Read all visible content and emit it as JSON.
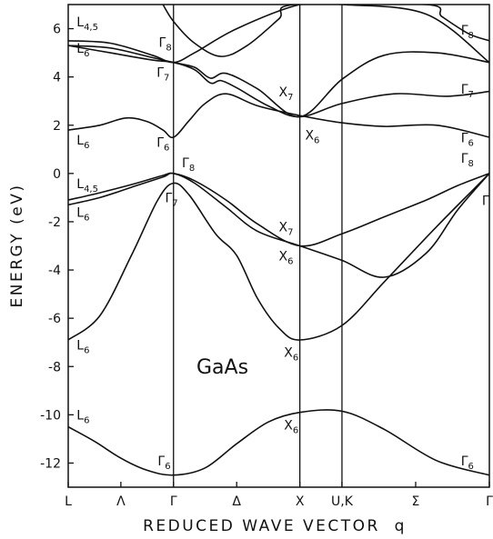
{
  "chart_data": {
    "type": "line",
    "title": "",
    "annotation": "GaAs",
    "xlabel": "REDUCED WAVE VECTOR  q",
    "ylabel": "ENERGY (eV)",
    "ylim": [
      -13,
      7
    ],
    "yticks": [
      6,
      4,
      2,
      0,
      -2,
      -4,
      -6,
      -8,
      -10,
      -12
    ],
    "x_points": [
      {
        "label": "L",
        "pos": 0.0
      },
      {
        "label": "Λ",
        "pos": 0.5
      },
      {
        "label": "Γ",
        "pos": 1.0
      },
      {
        "label": "Δ",
        "pos": 1.6
      },
      {
        "label": "X",
        "pos": 2.2
      },
      {
        "label": "U,K",
        "pos": 2.6
      },
      {
        "label": "Σ",
        "pos": 3.3
      },
      {
        "label": "Γ",
        "pos": 4.0
      }
    ],
    "vertical_lines": [
      1.0,
      2.2,
      2.6
    ],
    "series": [
      {
        "values": [
          [
            0,
            -10.5
          ],
          [
            0.25,
            -11.1
          ],
          [
            0.5,
            -11.8
          ],
          [
            0.75,
            -12.3
          ],
          [
            1.0,
            -12.5
          ],
          [
            1.3,
            -12.2
          ],
          [
            1.6,
            -11.2
          ],
          [
            1.9,
            -10.3
          ],
          [
            2.2,
            -9.9
          ],
          [
            2.6,
            -9.85
          ],
          [
            3.0,
            -10.6
          ],
          [
            3.5,
            -11.9
          ],
          [
            4.0,
            -12.5
          ]
        ]
      },
      {
        "values": [
          [
            0,
            -6.9
          ],
          [
            0.3,
            -5.9
          ],
          [
            0.6,
            -3.4
          ],
          [
            0.85,
            -1.1
          ],
          [
            1.0,
            -0.4
          ],
          [
            1.15,
            -0.9
          ],
          [
            1.4,
            -2.5
          ],
          [
            1.6,
            -3.4
          ],
          [
            1.8,
            -5.2
          ],
          [
            2.0,
            -6.4
          ],
          [
            2.2,
            -6.9
          ],
          [
            2.6,
            -6.3
          ],
          [
            3.0,
            -4.5
          ],
          [
            3.5,
            -2.2
          ],
          [
            4.0,
            0.0
          ]
        ]
      },
      {
        "values": [
          [
            0,
            -1.3
          ],
          [
            0.3,
            -1.0
          ],
          [
            0.65,
            -0.5
          ],
          [
            0.9,
            -0.15
          ],
          [
            1.0,
            0.0
          ],
          [
            1.2,
            -0.4
          ],
          [
            1.5,
            -1.4
          ],
          [
            1.8,
            -2.4
          ],
          [
            2.2,
            -3.0
          ],
          [
            2.6,
            -3.6
          ],
          [
            3.0,
            -4.3
          ],
          [
            3.4,
            -3.3
          ],
          [
            3.7,
            -1.5
          ],
          [
            4.0,
            0.0
          ]
        ]
      },
      {
        "values": [
          [
            0,
            -1.1
          ],
          [
            0.3,
            -0.8
          ],
          [
            0.65,
            -0.4
          ],
          [
            0.9,
            -0.08
          ],
          [
            1.0,
            0.0
          ],
          [
            1.2,
            -0.3
          ],
          [
            1.5,
            -1.1
          ],
          [
            1.8,
            -2.1
          ],
          [
            2.2,
            -3.0
          ],
          [
            2.6,
            -2.5
          ],
          [
            3.0,
            -1.8
          ],
          [
            3.4,
            -1.1
          ],
          [
            3.7,
            -0.5
          ],
          [
            4.0,
            0.0
          ]
        ]
      },
      {
        "values": [
          [
            0,
            1.8
          ],
          [
            0.3,
            2.0
          ],
          [
            0.55,
            2.3
          ],
          [
            0.75,
            2.15
          ],
          [
            0.9,
            1.8
          ],
          [
            1.0,
            1.5
          ],
          [
            1.15,
            2.2
          ],
          [
            1.3,
            2.9
          ],
          [
            1.5,
            3.3
          ],
          [
            1.8,
            2.8
          ],
          [
            2.2,
            2.4
          ],
          [
            2.6,
            2.1
          ],
          [
            3.0,
            1.95
          ],
          [
            3.5,
            2.0
          ],
          [
            4.0,
            1.5
          ]
        ]
      },
      {
        "values": [
          [
            0,
            5.3
          ],
          [
            0.4,
            5.0
          ],
          [
            0.8,
            4.7
          ],
          [
            1.0,
            4.6
          ],
          [
            1.2,
            4.3
          ],
          [
            1.35,
            3.75
          ],
          [
            1.45,
            3.85
          ],
          [
            1.6,
            3.55
          ],
          [
            1.9,
            2.8
          ],
          [
            2.2,
            2.35
          ],
          [
            2.6,
            2.9
          ],
          [
            3.1,
            3.3
          ],
          [
            3.6,
            3.2
          ],
          [
            4.0,
            3.4
          ]
        ]
      },
      {
        "values": [
          [
            0,
            5.3
          ],
          [
            0.4,
            5.2
          ],
          [
            0.8,
            4.8
          ],
          [
            1.0,
            4.6
          ],
          [
            1.2,
            4.4
          ],
          [
            1.35,
            3.95
          ],
          [
            1.5,
            4.15
          ],
          [
            1.8,
            3.5
          ],
          [
            2.2,
            2.35
          ],
          [
            2.6,
            3.9
          ],
          [
            3.0,
            4.9
          ],
          [
            3.5,
            5.0
          ],
          [
            4.0,
            4.6
          ]
        ]
      },
      {
        "values": [
          [
            0,
            5.5
          ],
          [
            0.4,
            5.4
          ],
          [
            0.8,
            4.9
          ],
          [
            1.0,
            4.6
          ],
          [
            1.2,
            5.0
          ],
          [
            1.6,
            6.0
          ],
          [
            2.2,
            7.0
          ],
          [
            2.6,
            7.0
          ],
          [
            3.4,
            6.6
          ],
          [
            4.0,
            4.6
          ]
        ]
      },
      {
        "values": [
          [
            0.9,
            7.0
          ],
          [
            1.0,
            6.3
          ],
          [
            1.2,
            5.4
          ],
          [
            1.45,
            4.85
          ],
          [
            1.7,
            5.3
          ],
          [
            2.0,
            6.4
          ],
          [
            2.15,
            7.0
          ],
          [
            3.4,
            7.0
          ],
          [
            3.55,
            6.5
          ],
          [
            3.8,
            5.8
          ],
          [
            4.0,
            5.5
          ]
        ]
      }
    ],
    "point_labels": [
      {
        "text": "L",
        "sub": "4,5",
        "x": 0.08,
        "y": 6.1
      },
      {
        "text": "L",
        "sub": "6",
        "x": 0.08,
        "y": 5.0
      },
      {
        "text": "L",
        "sub": "6",
        "x": 0.08,
        "y": 1.2
      },
      {
        "text": "L",
        "sub": "4,5",
        "x": 0.08,
        "y": -0.6
      },
      {
        "text": "L",
        "sub": "6",
        "x": 0.08,
        "y": -1.8
      },
      {
        "text": "L",
        "sub": "6",
        "x": 0.08,
        "y": -7.3
      },
      {
        "text": "L",
        "sub": "6",
        "x": 0.08,
        "y": -10.2
      },
      {
        "text": "Γ",
        "sub": "8",
        "x": 0.86,
        "y": 5.25
      },
      {
        "text": "Γ",
        "sub": "7",
        "x": 0.84,
        "y": 4.0
      },
      {
        "text": "Γ",
        "sub": "6",
        "x": 0.84,
        "y": 1.1
      },
      {
        "text": "Γ",
        "sub": "8",
        "x": 1.08,
        "y": 0.25
      },
      {
        "text": "Γ",
        "sub": "7",
        "x": 0.92,
        "y": -1.2
      },
      {
        "text": "Γ",
        "sub": "6",
        "x": 0.85,
        "y": -12.1
      },
      {
        "text": "X",
        "sub": "7",
        "x": 2.0,
        "y": 3.2
      },
      {
        "text": "X",
        "sub": "6",
        "x": 2.25,
        "y": 1.4
      },
      {
        "text": "X",
        "sub": "7",
        "x": 2.0,
        "y": -2.4
      },
      {
        "text": "X",
        "sub": "6",
        "x": 2.0,
        "y": -3.6
      },
      {
        "text": "X",
        "sub": "6",
        "x": 2.05,
        "y": -7.6
      },
      {
        "text": "X",
        "sub": "6",
        "x": 2.05,
        "y": -10.6
      },
      {
        "text": "Γ",
        "sub": "8",
        "x": 3.73,
        "y": 5.75
      },
      {
        "text": "Γ",
        "sub": "7",
        "x": 3.73,
        "y": 3.3
      },
      {
        "text": "Γ",
        "sub": "6",
        "x": 3.73,
        "y": 1.3
      },
      {
        "text": "Γ",
        "sub": "8",
        "x": 3.73,
        "y": 0.45
      },
      {
        "text": "Γ",
        "sub": "",
        "x": 3.93,
        "y": -1.3
      },
      {
        "text": "Γ",
        "sub": "6",
        "x": 3.73,
        "y": -12.1
      }
    ],
    "grid": false,
    "legend": "none"
  }
}
